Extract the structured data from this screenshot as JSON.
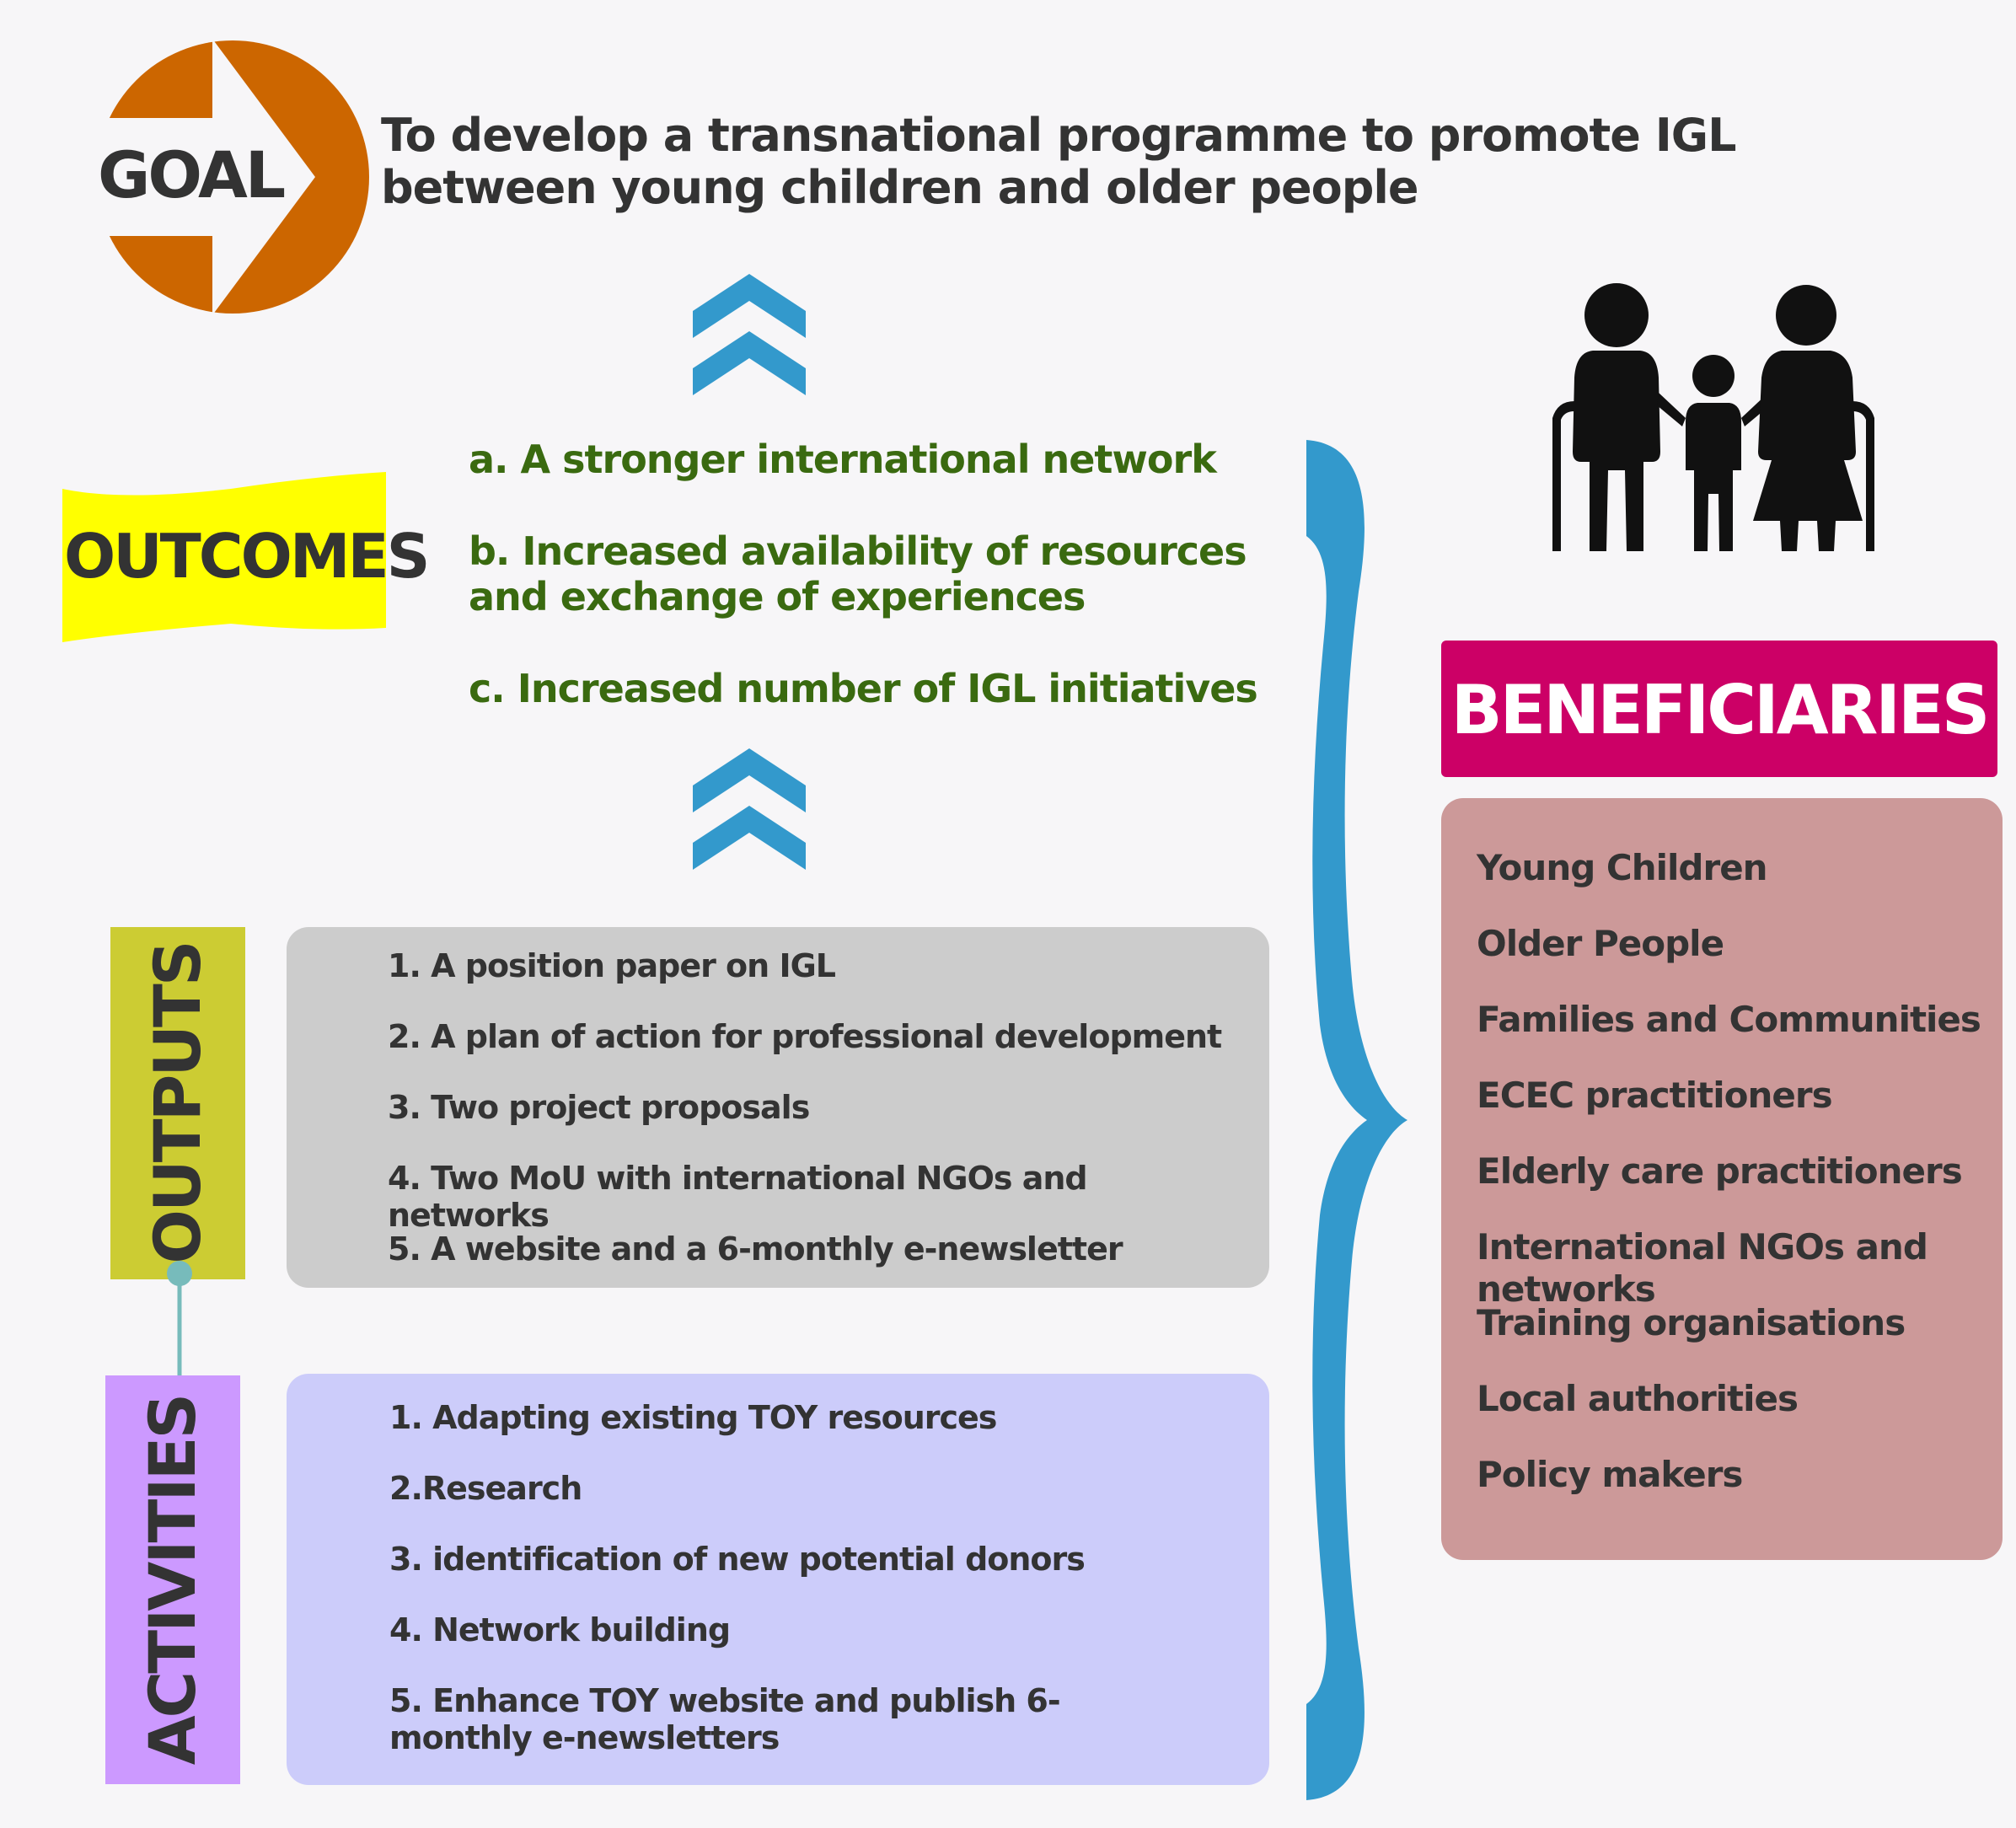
{
  "goal": {
    "label": "GOAL",
    "text": "To develop a transnational programme to promote IGL between young children and older people"
  },
  "outcomes": {
    "label": "OUTCOMES",
    "items": [
      "a. A stronger international network",
      "b. Increased availability of resources and exchange of experiences",
      "c. Increased number of IGL initiatives"
    ]
  },
  "outputs": {
    "label": "OUTPUTS",
    "items": [
      "1. A position paper on IGL",
      "2. A plan of action for professional development",
      "3. Two project proposals",
      "4. Two MoU with international NGOs and networks",
      "5. A website and a 6-monthly e-newsletter"
    ]
  },
  "activities": {
    "label": "ACTIVITIES",
    "items": [
      "1. Adapting existing TOY resources",
      "2.Research",
      "3. identification of new potential donors",
      "4. Network building",
      "5. Enhance TOY website and publish 6-monthly e-newsletters"
    ]
  },
  "beneficiaries": {
    "label": "BENEFICIARIES",
    "items": [
      "Young Children",
      "Older People",
      "Families and Communities",
      "ECEC practitioners",
      "Elderly care practitioners",
      "International NGOs and networks",
      "Training organisations",
      "Local authorities",
      "Policy makers"
    ]
  },
  "colors": {
    "goal_circle": "#cc6600",
    "outcomes_banner": "#ffff00",
    "outcome_text": "#3a6a10",
    "chevron": "#3399cc",
    "outputs_tab": "#cccc33",
    "outputs_box": "#cccccc",
    "activities_tab": "#cc99ff",
    "activities_box": "#ccccfa",
    "connector": "#77bbbb",
    "beneficiaries_header": "#cc0066",
    "beneficiaries_box": "#cc9999",
    "brace": "#3399cc"
  },
  "icons": [
    "goal-arrow-icon",
    "chevron-up-icon",
    "family-icon",
    "curly-brace-icon"
  ]
}
